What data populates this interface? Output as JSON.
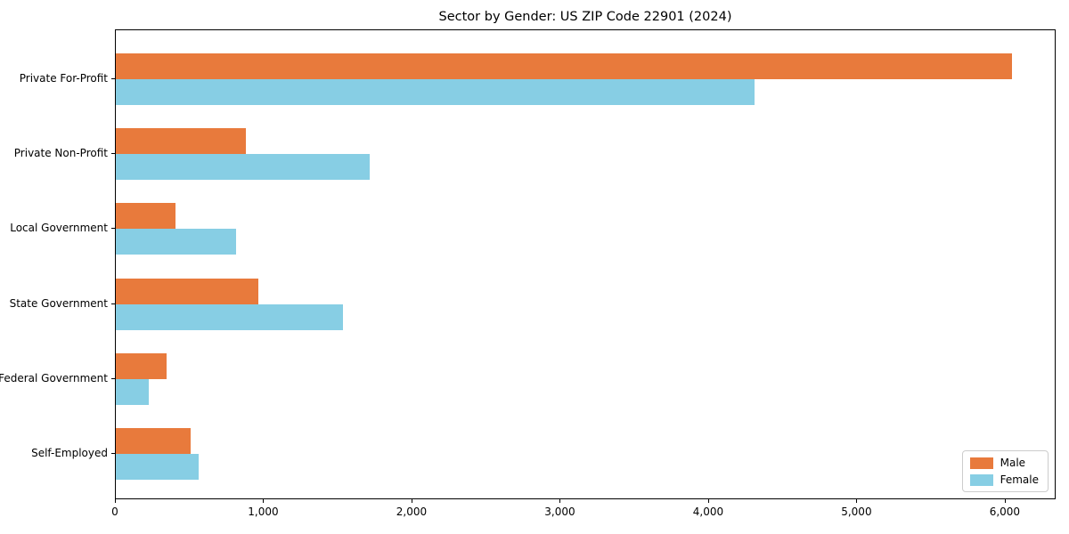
{
  "title": "Sector by Gender: US ZIP Code 22901 (2024)",
  "chart_data": {
    "type": "bar",
    "orientation": "horizontal",
    "title": "Sector by Gender: US ZIP Code 22901 (2024)",
    "xlabel": "",
    "ylabel": "",
    "categories": [
      "Private For-Profit",
      "Private Non-Profit",
      "Local Government",
      "State Government",
      "Federal Government",
      "Self-Employed"
    ],
    "series": [
      {
        "name": "Male",
        "color": "#e87a3c",
        "values": [
          6040,
          875,
          400,
          960,
          340,
          505
        ]
      },
      {
        "name": "Female",
        "color": "#87cee4",
        "values": [
          4305,
          1710,
          810,
          1530,
          225,
          560
        ]
      }
    ],
    "xlim": [
      0,
      6343
    ],
    "x_ticks": [
      0,
      1000,
      2000,
      3000,
      4000,
      5000,
      6000
    ],
    "x_tick_labels": [
      "0",
      "1,000",
      "2,000",
      "3,000",
      "4,000",
      "5,000",
      "6,000"
    ],
    "grid": false,
    "legend_position": "lower right"
  }
}
